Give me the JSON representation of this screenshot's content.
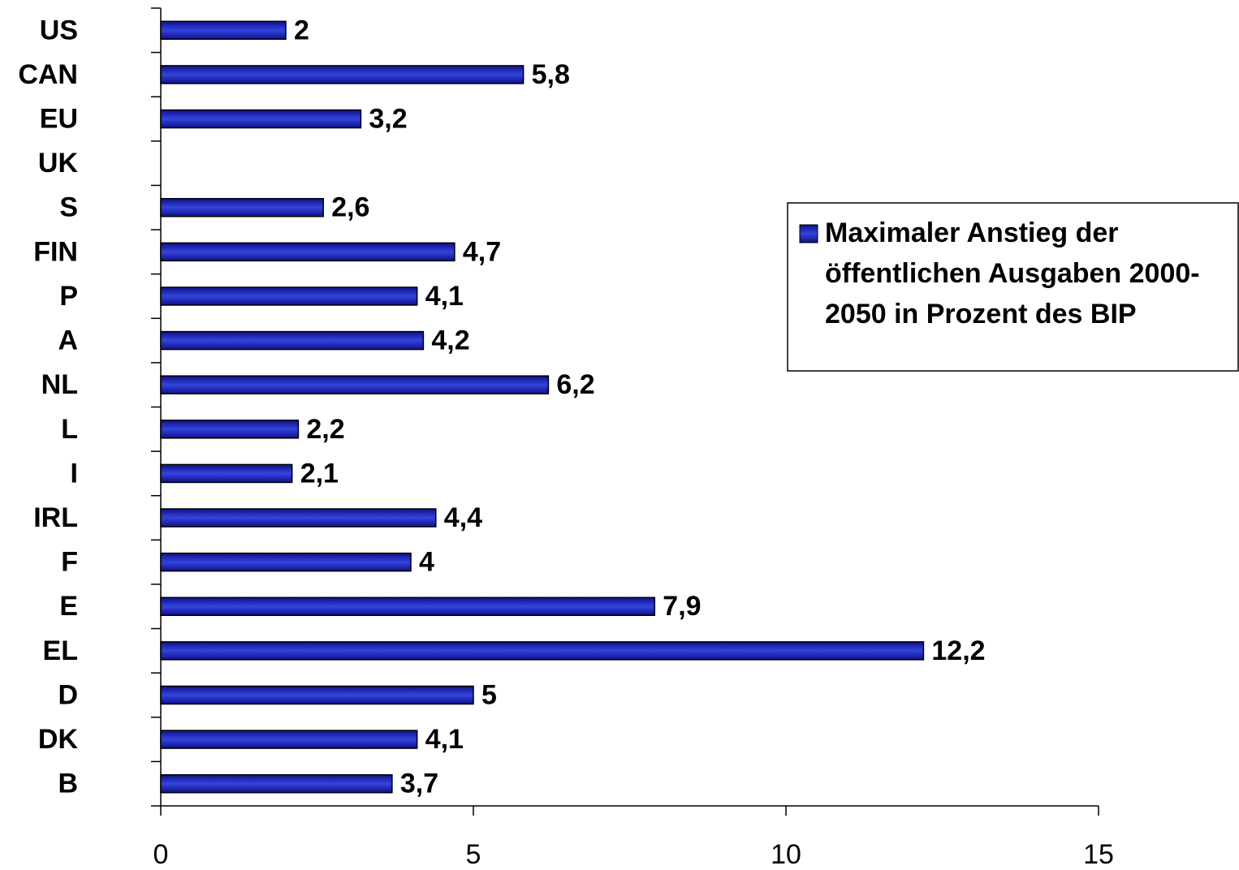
{
  "chart_data": {
    "type": "bar",
    "orientation": "horizontal",
    "categories": [
      "US",
      "CAN",
      "EU",
      "UK",
      "S",
      "FIN",
      "P",
      "A",
      "NL",
      "L",
      "I",
      "IRL",
      "F",
      "E",
      "EL",
      "D",
      "DK",
      "B"
    ],
    "series": [
      {
        "name": "Maximaler Anstieg der öffentlichen Ausgaben 2000-2050 in Prozent des BIP",
        "color": "#3344dd",
        "values": [
          2,
          5.8,
          3.2,
          null,
          2.6,
          4.7,
          4.1,
          4.2,
          6.2,
          2.2,
          2.1,
          4.4,
          4,
          7.9,
          12.2,
          5,
          4.1,
          3.7
        ],
        "value_labels": [
          "2",
          "5,8",
          "3,2",
          null,
          "2,6",
          "4,7",
          "4,1",
          "4,2",
          "6,2",
          "2,2",
          "2,1",
          "4,4",
          "4",
          "7,9",
          "12,2",
          "5",
          "4,1",
          "3,7"
        ]
      }
    ],
    "xlim": [
      0,
      15
    ],
    "xticks": [
      0,
      5,
      10,
      15
    ],
    "legend": "right"
  }
}
